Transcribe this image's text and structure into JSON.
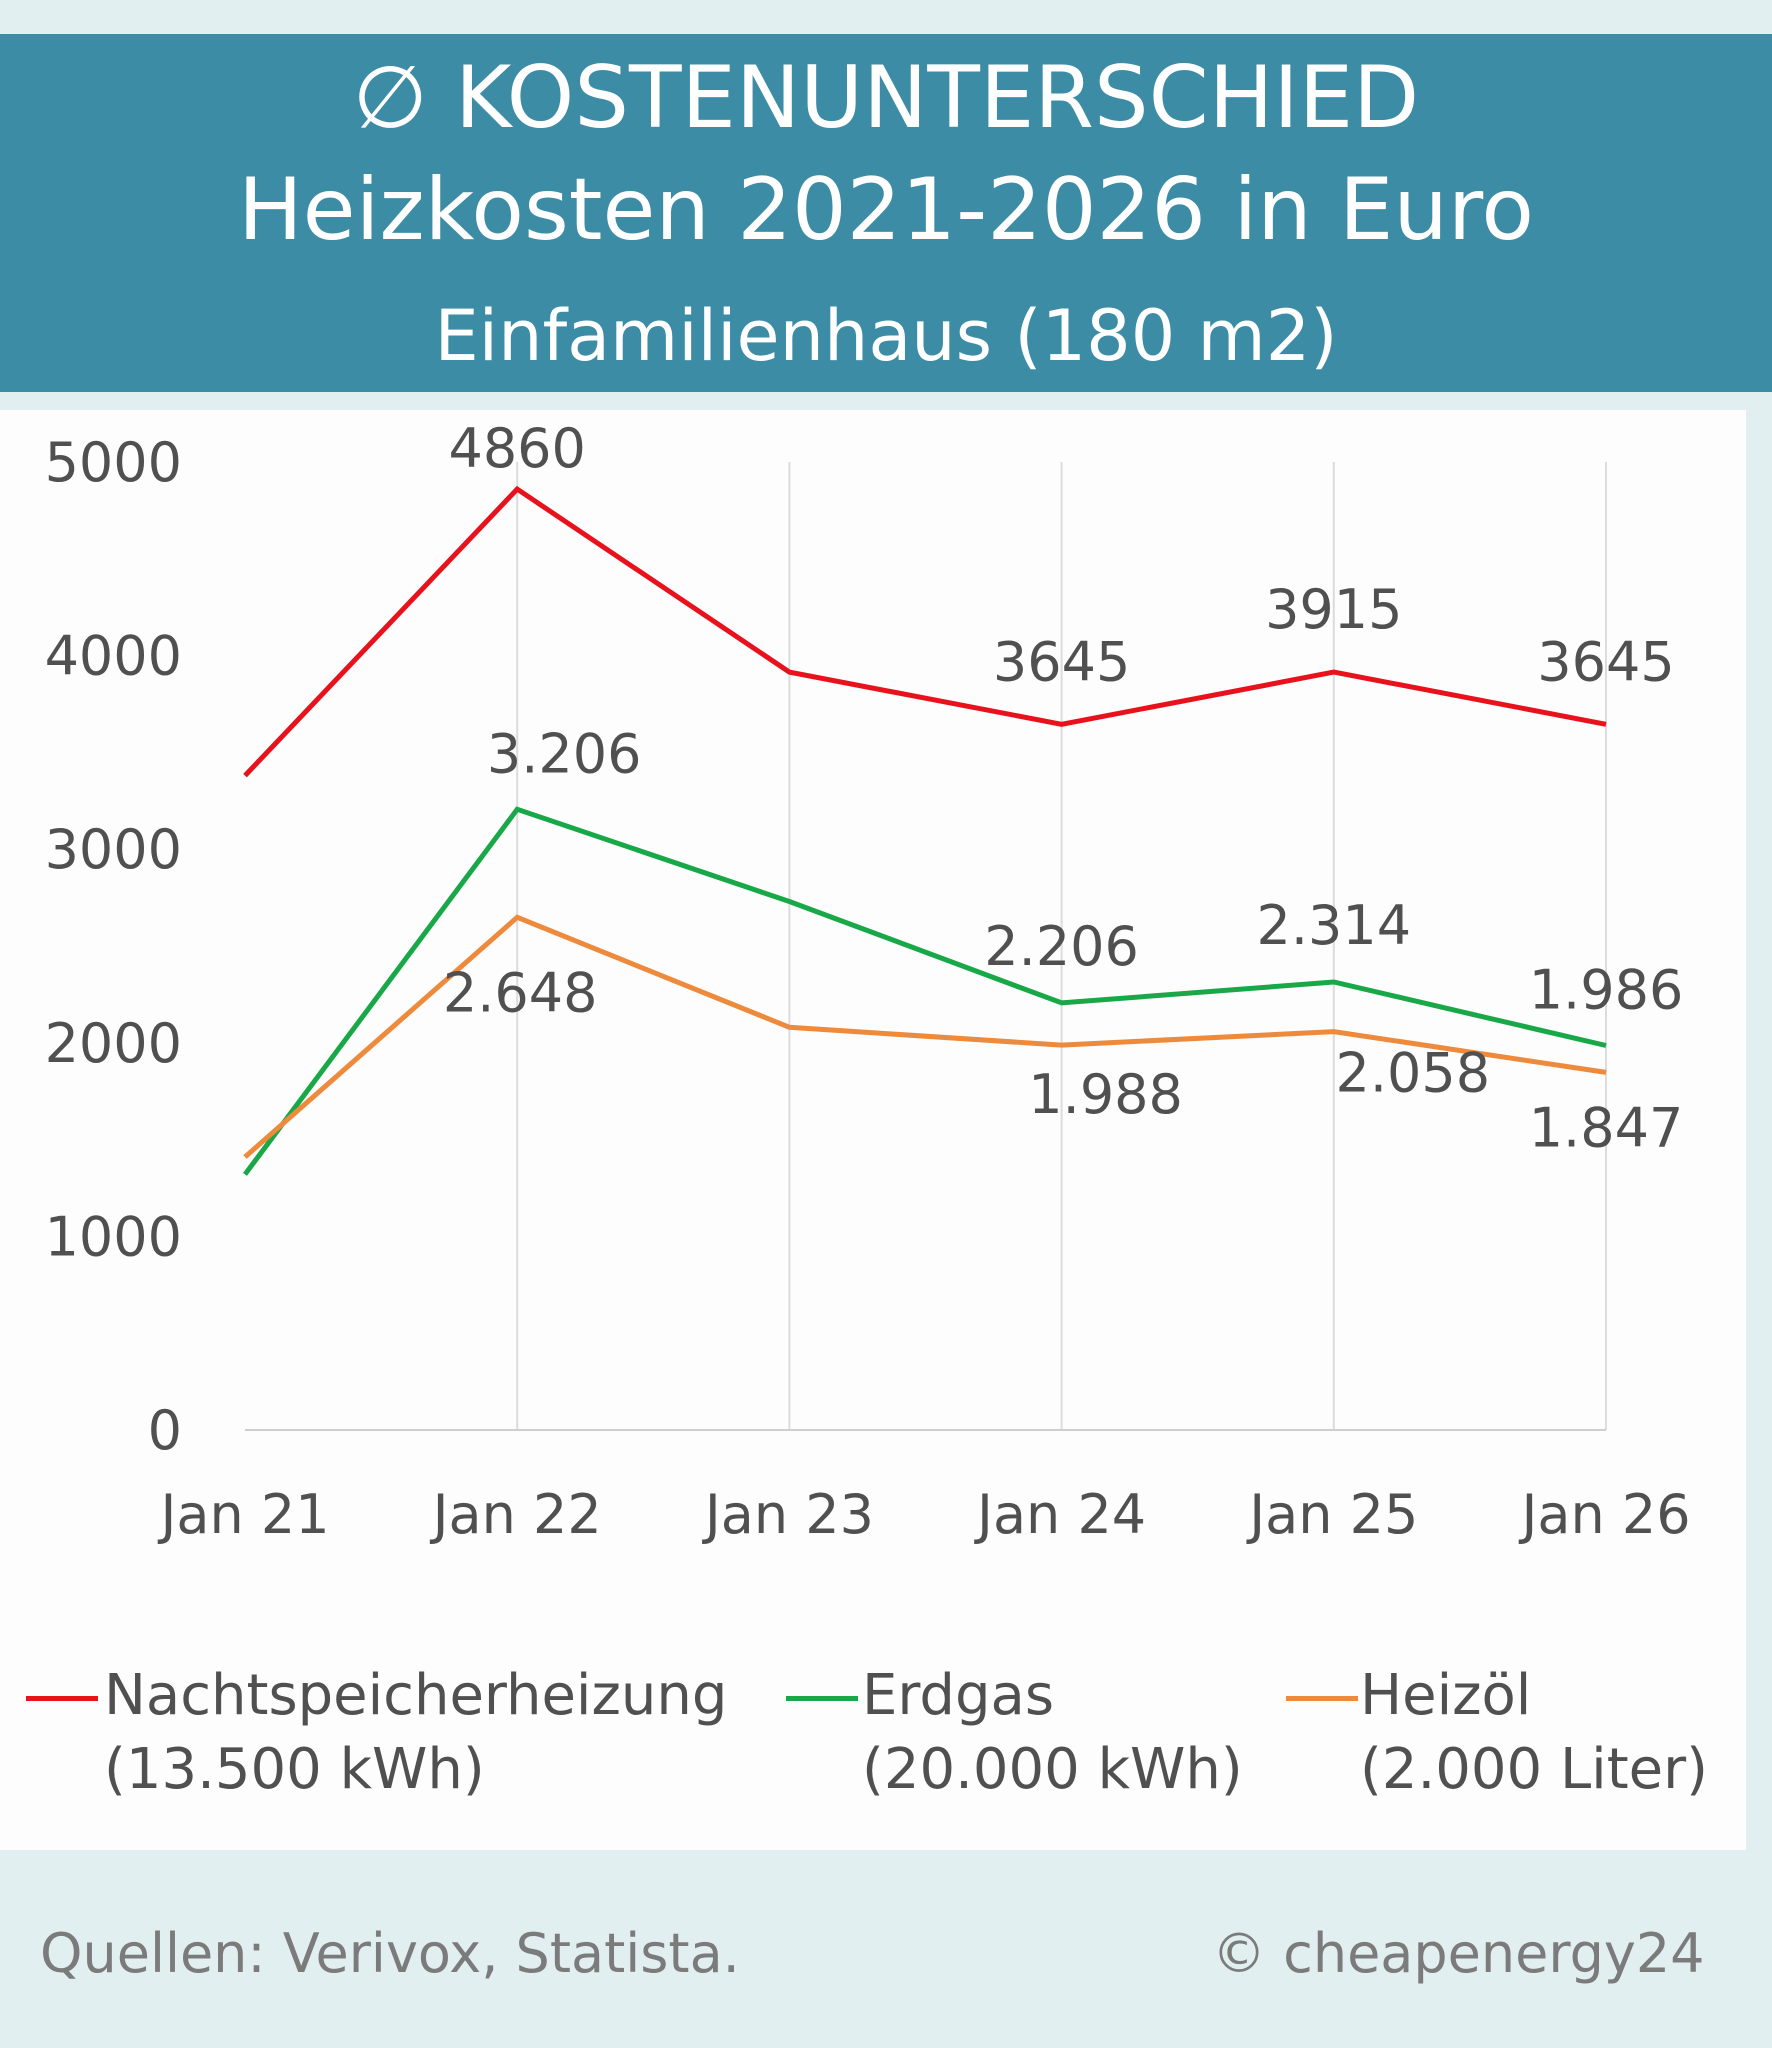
{
  "header": {
    "line1": "∅ KOSTENUNTERSCHIED",
    "line2": "Heizkosten 2021-2026 in Euro",
    "line3": "Einfamilienhaus (180 m2)"
  },
  "chart_data": {
    "type": "line",
    "categories": [
      "Jan 21",
      "Jan 22",
      "Jan 23",
      "Jan 24",
      "Jan 25",
      "Jan 26"
    ],
    "ylim": [
      0,
      5000
    ],
    "yticks": [
      "0",
      "1000",
      "2000",
      "3000",
      "4000",
      "5000"
    ],
    "grid": "vertical",
    "legend_position": "bottom",
    "series": [
      {
        "name": "Nachtspeicherheizung",
        "unit_note": "(13.500 kWh)",
        "color": "#e8121c",
        "values": [
          3380,
          4860,
          3915,
          3645,
          3915,
          3645
        ],
        "labels": [
          "",
          "4860",
          "",
          "3645",
          "3915",
          "3645"
        ]
      },
      {
        "name": "Erdgas",
        "unit_note": "(20.000 kWh)",
        "color": "#18a848",
        "values": [
          1320,
          3206,
          2730,
          2206,
          2314,
          1986
        ],
        "labels": [
          "",
          "3.206",
          "",
          "2.206",
          "2.314",
          "1.986"
        ]
      },
      {
        "name": "Heizöl",
        "unit_note": "(2.000 Liter)",
        "color": "#ed8a3c",
        "values": [
          1410,
          2648,
          2080,
          1988,
          2058,
          1847
        ],
        "labels": [
          "",
          "2.648",
          "",
          "1.988",
          "2.058",
          "1.847"
        ]
      }
    ]
  },
  "footer": {
    "source": "Quellen: Verivox, Statista.",
    "credit": "© cheapenergy24"
  }
}
